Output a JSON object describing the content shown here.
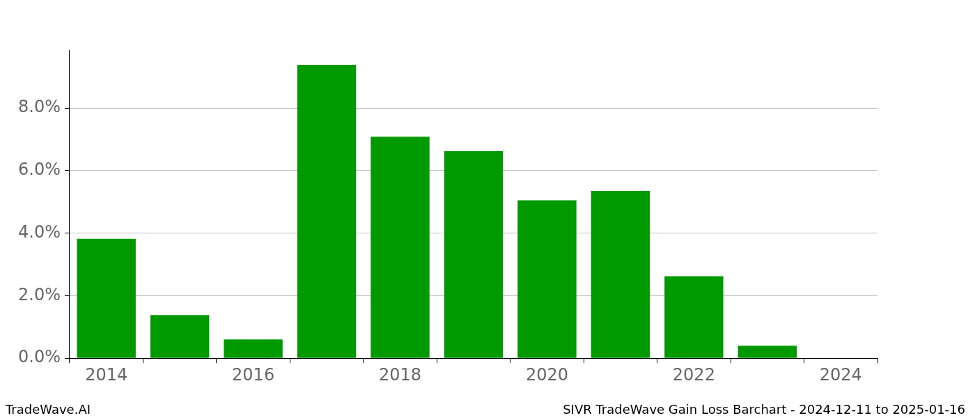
{
  "chart_data": {
    "type": "bar",
    "title": "SIVR TradeWave Gain Loss Barchart - 2024-12-11 to 2025-01-16",
    "annotations": [
      "TradeWave.AI"
    ],
    "categories": [
      "2014",
      null,
      "2016",
      null,
      "2018",
      null,
      "2020",
      null,
      "2022",
      null,
      "2024"
    ],
    "values": [
      3.82,
      1.38,
      0.6,
      9.38,
      7.08,
      6.62,
      5.05,
      5.35,
      2.62,
      0.4,
      0
    ],
    "color": "#009900",
    "ylim": [
      0,
      9.85
    ],
    "yticks": [
      {
        "value": 0,
        "label": "0.0%"
      },
      {
        "value": 2,
        "label": "2.0%"
      },
      {
        "value": 4,
        "label": "4.0%"
      },
      {
        "value": 6,
        "label": "6.0%"
      },
      {
        "value": 8,
        "label": "8.0%"
      }
    ],
    "grid": true
  }
}
